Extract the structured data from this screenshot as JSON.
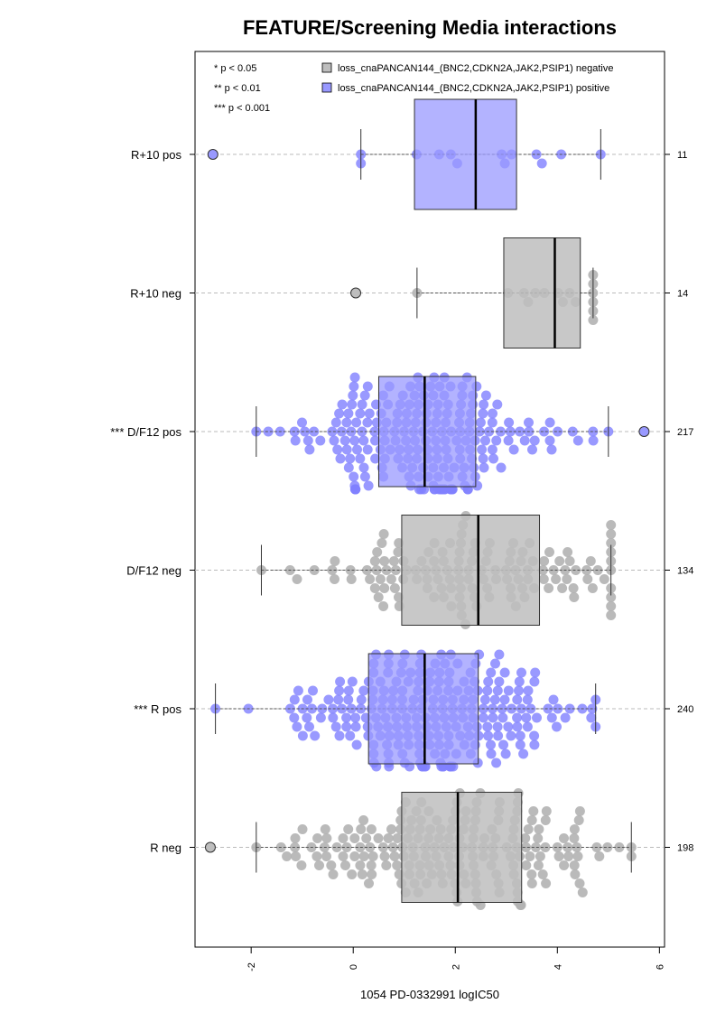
{
  "chart_data": {
    "type": "box",
    "title": "FEATURE/Screening Media interactions",
    "xlabel": "1054 PD-0332991 logIC50",
    "ylabel": "",
    "xlim": [
      -3.1,
      6.1
    ],
    "xticks": [
      "-2",
      "0",
      "2",
      "4",
      "6"
    ],
    "xtick_values": [
      -2,
      0,
      2,
      4,
      6
    ],
    "grid": "dashed horizontal lines at each group",
    "legend": {
      "placement": "top",
      "significance": [
        "* p < 0.05",
        "** p < 0.01",
        "*** p < 0.001"
      ],
      "entries": [
        {
          "label": "loss_cnaPANCAN144_(BNC2,CDKN2A,JAK2,PSIP1) negative",
          "color": "#bebebe"
        },
        {
          "label": "loss_cnaPANCAN144_(BNC2,CDKN2A,JAK2,PSIP1) positive",
          "color": "#9999ff"
        }
      ]
    },
    "colors": {
      "negative_box": "#bebebe",
      "positive_box": "#9999ff",
      "negative_points": "#b3b3b3",
      "positive_points": "#8080ff",
      "grid": "#bbbbbb"
    },
    "groups": [
      {
        "label": "R+10 pos",
        "status": "positive",
        "n": "11",
        "whisker_low": 0.15,
        "q1": 1.2,
        "median": 2.4,
        "q3": 3.2,
        "whisker_high": 4.85,
        "outliers": [
          -2.75
        ],
        "spread": 2
      },
      {
        "label": "R+10 neg",
        "status": "negative",
        "n": "14",
        "whisker_low": 1.25,
        "q1": 2.95,
        "median": 3.95,
        "q3": 4.45,
        "whisker_high": 4.7,
        "outliers": [
          0.05
        ],
        "spread": 2
      },
      {
        "label": "*** D/F12 pos",
        "status": "positive",
        "n": "217",
        "whisker_low": -1.9,
        "q1": 0.5,
        "median": 1.4,
        "q3": 2.4,
        "whisker_high": 5.0,
        "outliers": [
          5.7
        ],
        "spread": 12
      },
      {
        "label": "D/F12 neg",
        "status": "negative",
        "n": "134",
        "whisker_low": -1.8,
        "q1": 0.95,
        "median": 2.45,
        "q3": 3.65,
        "whisker_high": 5.05,
        "outliers": [],
        "spread": 10
      },
      {
        "label": "*** R pos",
        "status": "positive",
        "n": "240",
        "whisker_low": -2.7,
        "q1": 0.3,
        "median": 1.4,
        "q3": 2.45,
        "whisker_high": 4.75,
        "outliers": [],
        "spread": 12
      },
      {
        "label": "R neg",
        "status": "negative",
        "n": "198",
        "whisker_low": -1.9,
        "q1": 0.95,
        "median": 2.05,
        "q3": 3.3,
        "whisker_high": 5.45,
        "outliers": [
          -2.8
        ],
        "spread": 10
      }
    ]
  }
}
